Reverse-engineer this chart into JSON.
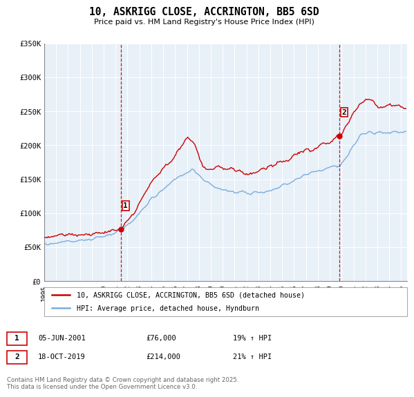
{
  "title": "10, ASKRIGG CLOSE, ACCRINGTON, BB5 6SD",
  "subtitle": "Price paid vs. HM Land Registry's House Price Index (HPI)",
  "xlim_start": 1995.0,
  "xlim_end": 2025.5,
  "ylim_min": 0,
  "ylim_max": 350000,
  "yticks": [
    0,
    50000,
    100000,
    150000,
    200000,
    250000,
    300000,
    350000
  ],
  "ytick_labels": [
    "£0",
    "£50K",
    "£100K",
    "£150K",
    "£200K",
    "£250K",
    "£300K",
    "£350K"
  ],
  "xticks": [
    1995,
    1996,
    1997,
    1998,
    1999,
    2000,
    2001,
    2002,
    2003,
    2004,
    2005,
    2006,
    2007,
    2008,
    2009,
    2010,
    2011,
    2012,
    2013,
    2014,
    2015,
    2016,
    2017,
    2018,
    2019,
    2020,
    2021,
    2022,
    2023,
    2024,
    2025
  ],
  "purchase1_date": 2001.43,
  "purchase1_price": 76000,
  "purchase2_date": 2019.79,
  "purchase2_price": 214000,
  "line1_color": "#cc0000",
  "line2_color": "#7aaddb",
  "vline_color": "#cc0000",
  "bg_color": "#e8f0f8",
  "legend1_label": "10, ASKRIGG CLOSE, ACCRINGTON, BB5 6SD (detached house)",
  "legend2_label": "HPI: Average price, detached house, Hyndburn",
  "footer": "Contains HM Land Registry data © Crown copyright and database right 2025.\nThis data is licensed under the Open Government Licence v3.0.",
  "annotation_table": [
    [
      "1",
      "05-JUN-2001",
      "£76,000",
      "19% ↑ HPI"
    ],
    [
      "2",
      "18-OCT-2019",
      "£214,000",
      "21% ↑ HPI"
    ]
  ]
}
